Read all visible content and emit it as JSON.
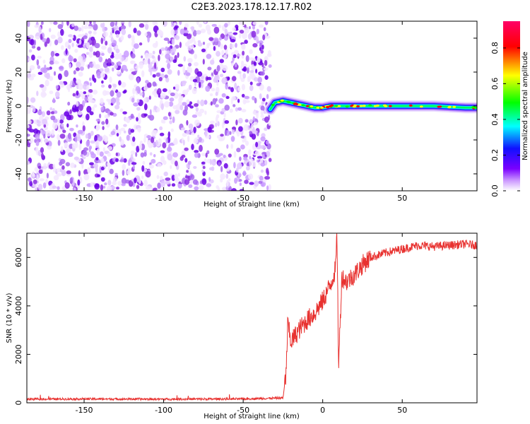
{
  "title": "C2E3.2023.178.12.17.R02",
  "colors": {
    "snr_line": "#e8312f",
    "scatter": "#8a2be2",
    "colormap": [
      "#ffffff",
      "#cc99ff",
      "#7a00ff",
      "#1010ff",
      "#00ffff",
      "#00ff00",
      "#ffff00",
      "#ff0000",
      "#ff0066"
    ]
  },
  "chart_data": [
    {
      "type": "heatmap",
      "xlabel": "Height of straight line (km)",
      "ylabel": "Frequency (Hz)",
      "xlim": [
        -186,
        97
      ],
      "ylim": [
        -50,
        50
      ],
      "xticks": [
        -150,
        -100,
        -50,
        0,
        50
      ],
      "yticks": [
        -40,
        -20,
        0,
        20,
        40
      ],
      "noise_region_x": [
        -186,
        -33
      ],
      "signal_trace": {
        "x": [
          -33,
          -30,
          -25,
          -20,
          -15,
          -10,
          -5,
          0,
          5,
          10,
          20,
          30,
          50,
          70,
          90,
          97
        ],
        "y": [
          -2,
          2,
          3,
          2,
          1,
          0,
          -1,
          -1,
          0,
          0,
          0,
          0,
          0,
          0,
          -1,
          -1
        ]
      },
      "colorbar": {
        "label": "Normalized spectral amplitude",
        "range": [
          0.0,
          0.95
        ],
        "ticks": [
          0.0,
          0.2,
          0.4,
          0.6,
          0.8
        ]
      }
    },
    {
      "type": "line",
      "xlabel": "Height of straight line (km)",
      "ylabel": "SNR (10 * v/v)",
      "xlim": [
        -186,
        97
      ],
      "ylim": [
        0,
        7000
      ],
      "xticks": [
        -150,
        -100,
        -50,
        0,
        50
      ],
      "yticks": [
        0,
        2000,
        4000,
        6000
      ],
      "series": [
        {
          "x": [
            -186,
            -150,
            -100,
            -50,
            -25,
            -23,
            -22,
            -20,
            -15,
            -10,
            -5,
            0,
            5,
            8,
            9,
            10,
            12,
            15,
            20,
            25,
            30,
            40,
            50,
            60,
            70,
            80,
            90,
            97
          ],
          "y": [
            150,
            160,
            150,
            160,
            200,
            1200,
            3300,
            2500,
            3000,
            3400,
            3700,
            4200,
            4900,
            5500,
            6900,
            1500,
            5200,
            5000,
            5300,
            5700,
            6000,
            6200,
            6350,
            6500,
            6450,
            6500,
            6550,
            6500
          ]
        }
      ]
    }
  ]
}
